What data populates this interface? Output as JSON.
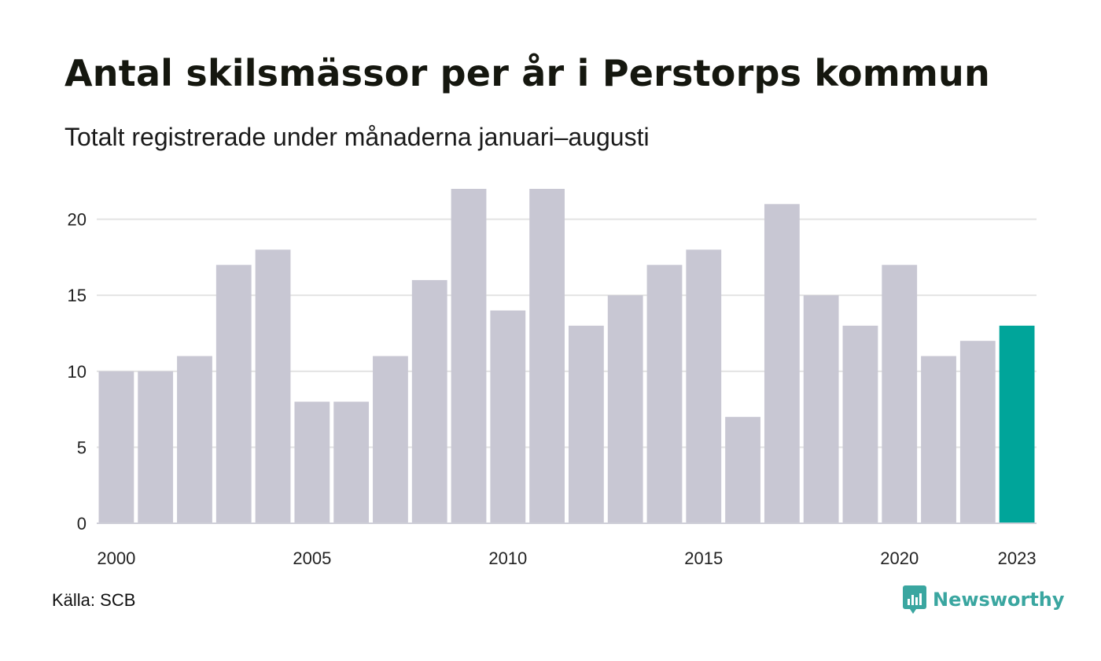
{
  "title": "Antal skilsmässor per år i Perstorps kommun",
  "subtitle": "Totalt registrerade under månaderna januari–augusti",
  "source": "Källa: SCB",
  "brand": {
    "name": "Newsworthy",
    "icon": "newsworthy-logo-icon",
    "color": "#3aa6a0"
  },
  "colors": {
    "bar": "#c8c7d3",
    "highlight": "#00a59a",
    "grid": "#e3e3e3"
  },
  "chart_data": {
    "type": "bar",
    "categories": [
      "2000",
      "2001",
      "2002",
      "2003",
      "2004",
      "2005",
      "2006",
      "2007",
      "2008",
      "2009",
      "2010",
      "2011",
      "2012",
      "2013",
      "2014",
      "2015",
      "2016",
      "2017",
      "2018",
      "2019",
      "2020",
      "2021",
      "2022",
      "2023"
    ],
    "values": [
      10,
      10,
      11,
      17,
      18,
      8,
      8,
      11,
      16,
      22,
      14,
      22,
      13,
      15,
      17,
      18,
      7,
      21,
      15,
      13,
      17,
      11,
      12,
      13
    ],
    "highlight_category": "2023",
    "x_tick_labels": [
      "2000",
      "2005",
      "2010",
      "2015",
      "2020",
      "2023"
    ],
    "y_ticks": [
      0,
      5,
      10,
      15,
      20
    ],
    "ylim": [
      0,
      22
    ],
    "grid": true,
    "xlabel": "",
    "ylabel": ""
  }
}
